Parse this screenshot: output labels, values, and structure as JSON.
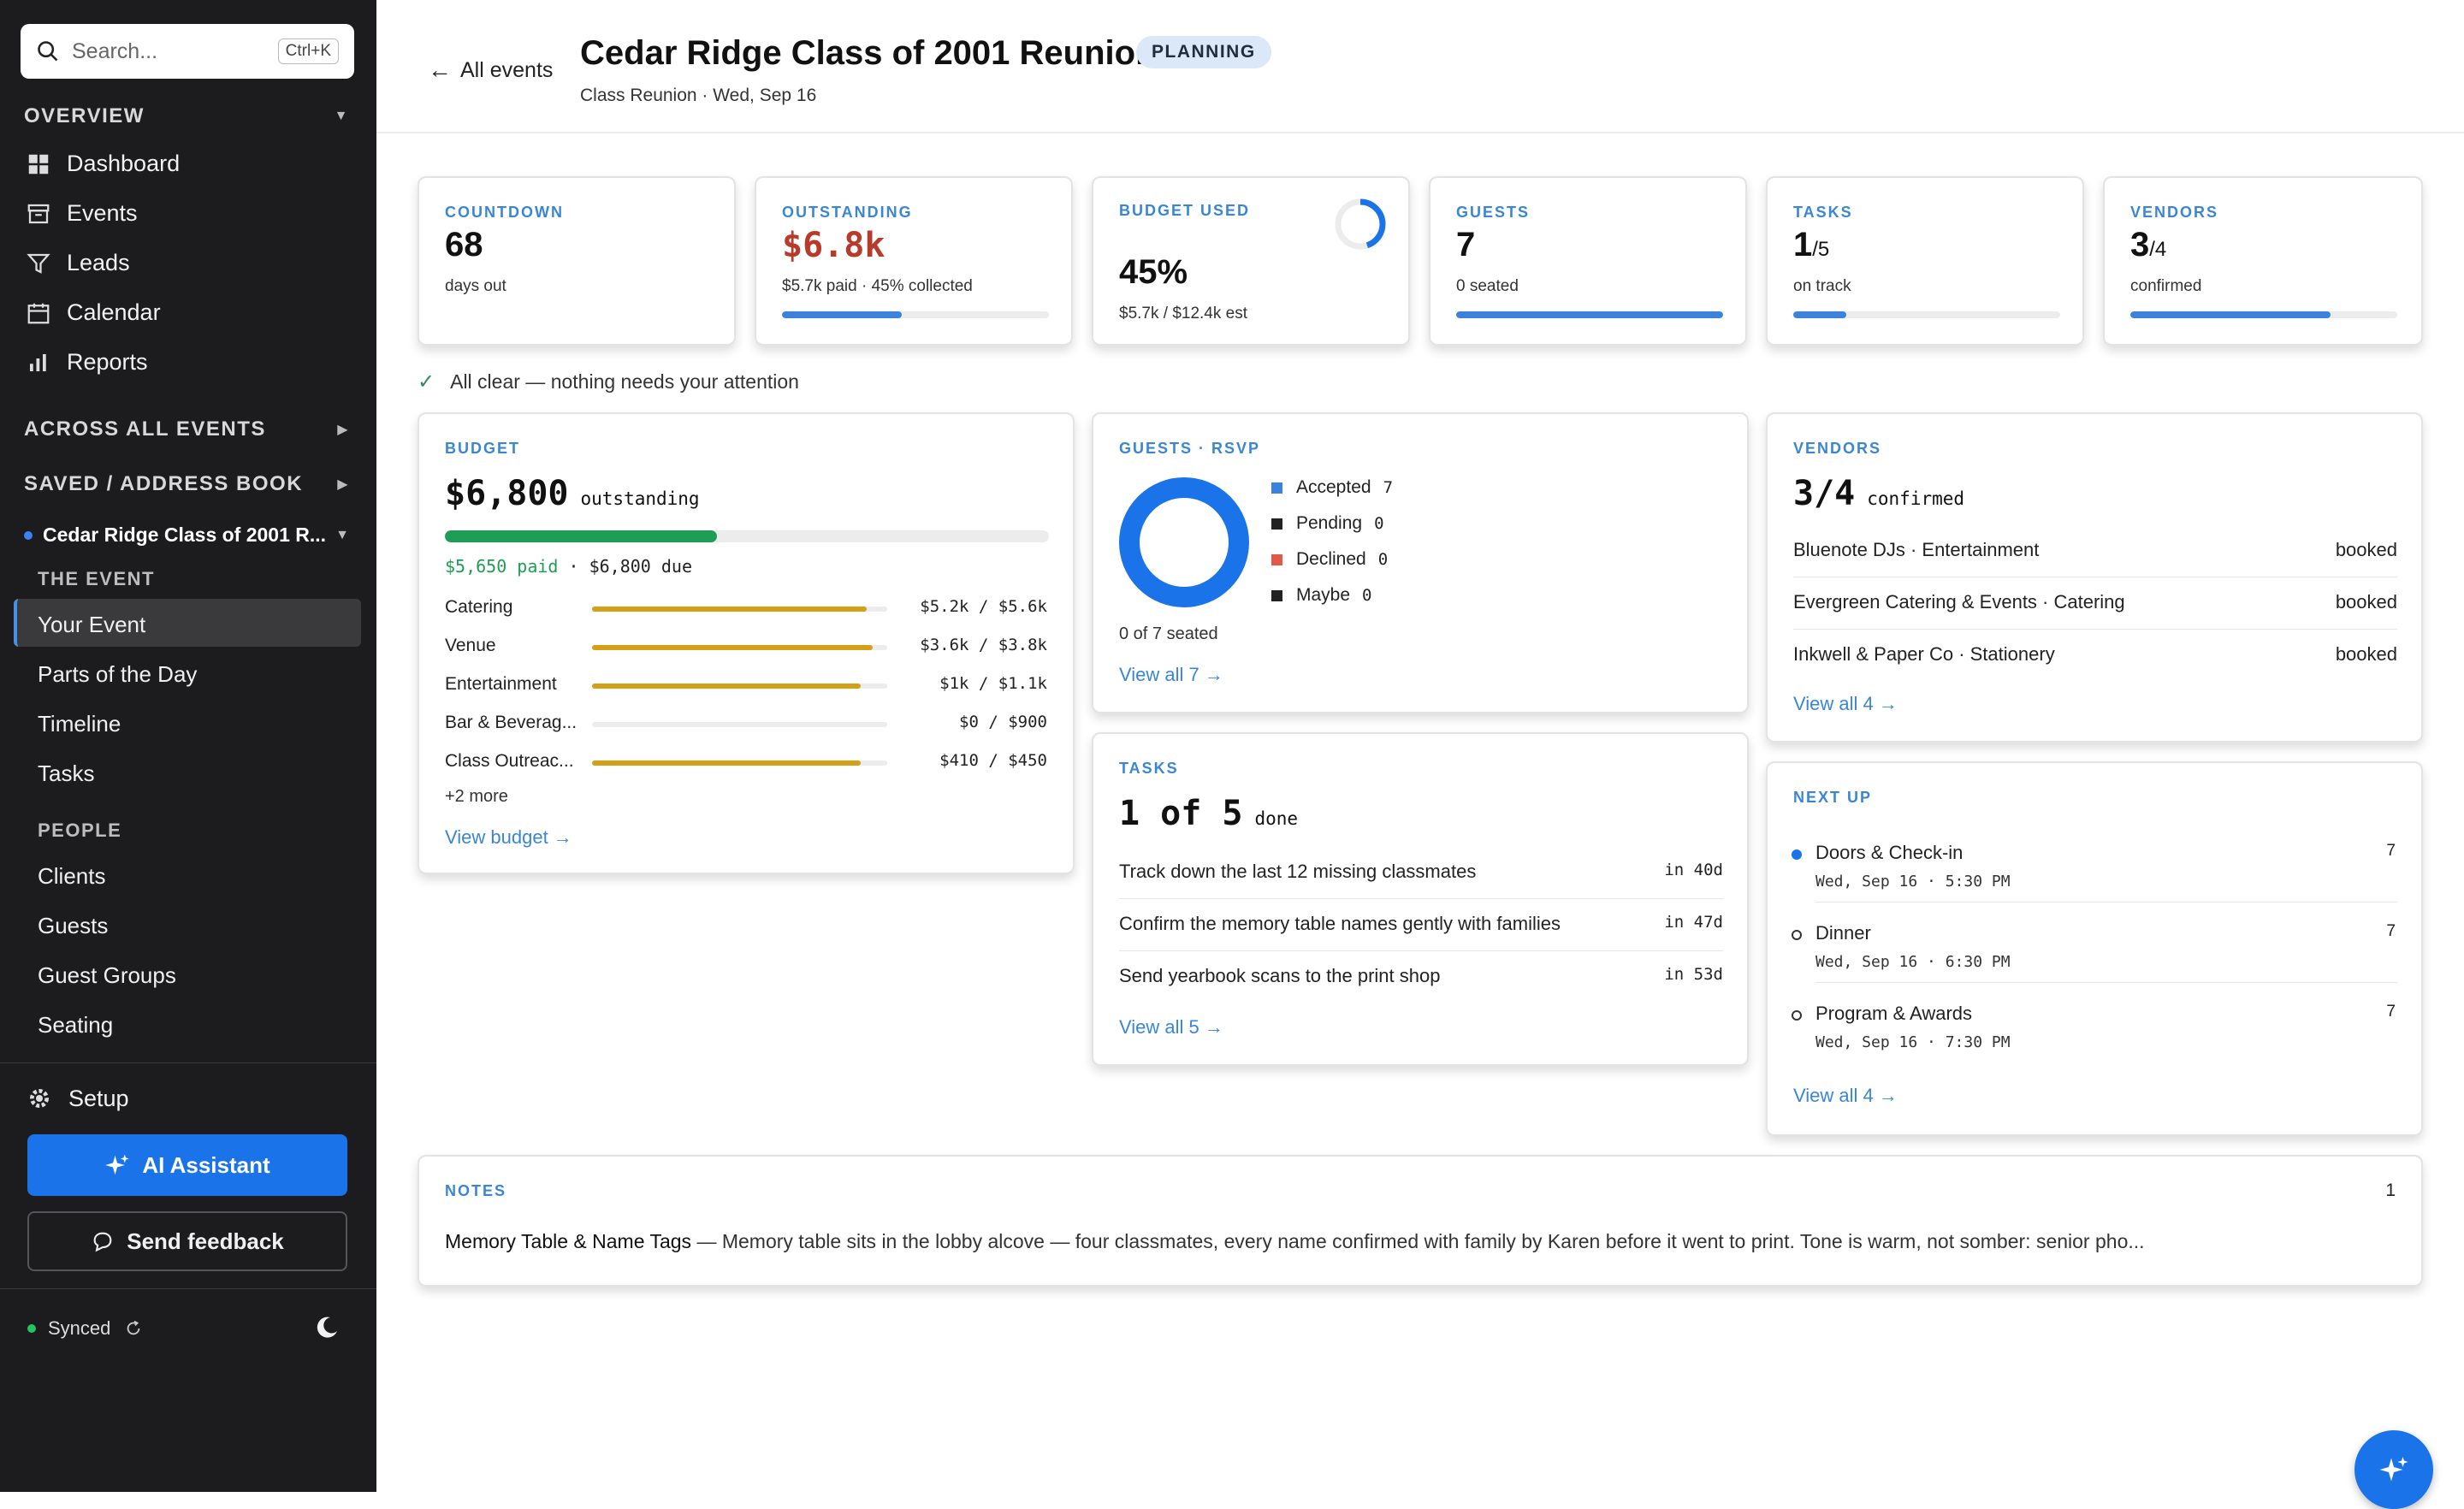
{
  "sidebar": {
    "search_placeholder": "Search...",
    "search_shortcut": "Ctrl+K",
    "overview_label": "OVERVIEW",
    "overview_items": [
      "Dashboard",
      "Events",
      "Leads",
      "Calendar",
      "Reports"
    ],
    "across_label": "ACROSS ALL EVENTS",
    "saved_label": "SAVED / ADDRESS BOOK",
    "current_event": "Cedar Ridge Class of 2001 R...",
    "the_event_label": "THE EVENT",
    "event_items": [
      "Your Event",
      "Parts of the Day",
      "Timeline",
      "Tasks"
    ],
    "people_label": "PEOPLE",
    "people_items": [
      "Clients",
      "Guests",
      "Guest Groups",
      "Seating"
    ],
    "setup_label": "Setup",
    "ai_label": "AI Assistant",
    "feedback_label": "Send feedback",
    "sync_label": "Synced"
  },
  "header": {
    "back_label": "All events",
    "title": "Cedar Ridge Class of 2001 Reunion",
    "badge": "PLANNING",
    "subtitle": "Class Reunion · Wed, Sep 16"
  },
  "kpis": {
    "countdown": {
      "label": "COUNTDOWN",
      "value": "68",
      "sub": "days out"
    },
    "outstanding": {
      "label": "OUTSTANDING",
      "value": "$6.8k",
      "sub": "$5.7k paid · 45% collected",
      "progress": 0.45
    },
    "budget_used": {
      "label": "BUDGET USED",
      "value": "45%",
      "sub": "$5.7k / $12.4k est",
      "progress": 0.45
    },
    "guests": {
      "label": "GUESTS",
      "value": "7",
      "sub": "0 seated",
      "progress": 1.0
    },
    "tasks": {
      "label": "TASKS",
      "value_main": "1",
      "value_rest": "/5",
      "sub": "on track",
      "progress": 0.2
    },
    "vendors": {
      "label": "VENDORS",
      "value_main": "3",
      "value_rest": "/4",
      "sub": "confirmed",
      "progress": 0.75
    }
  },
  "status_message": "All clear — nothing needs your attention",
  "budget": {
    "label": "BUDGET",
    "amount": "$6,800",
    "amount_suffix": "outstanding",
    "paid_fraction": 0.45,
    "paid_text": "$5,650 paid",
    "due_text": " · $6,800 due",
    "lines": [
      {
        "name": "Catering",
        "value": "$5.2k / $5.6k",
        "fraction": 0.93
      },
      {
        "name": "Venue",
        "value": "$3.6k / $3.8k",
        "fraction": 0.95
      },
      {
        "name": "Entertainment",
        "value": "$1k / $1.1k",
        "fraction": 0.91
      },
      {
        "name": "Bar & Beverag...",
        "value": "$0 / $900",
        "fraction": 0.0
      },
      {
        "name": "Class Outreac...",
        "value": "$410 / $450",
        "fraction": 0.91
      }
    ],
    "more": "+2 more",
    "link": "View budget →"
  },
  "rsvp": {
    "label": "GUESTS · RSVP",
    "legend": [
      {
        "name": "Accepted",
        "count": "7",
        "color": "#3b82dc"
      },
      {
        "name": "Pending",
        "count": "0",
        "color": "#222222"
      },
      {
        "name": "Declined",
        "count": "0",
        "color": "#e05a47"
      },
      {
        "name": "Maybe",
        "count": "0",
        "color": "#222222"
      }
    ],
    "seated": "0 of 7 seated",
    "link": "View all 7 →"
  },
  "vendors": {
    "label": "VENDORS",
    "count_main": "3/4",
    "count_suffix": "confirmed",
    "items": [
      {
        "name": "Bluenote DJs · Entertainment",
        "status": "booked"
      },
      {
        "name": "Evergreen Catering & Events · Catering",
        "status": "booked"
      },
      {
        "name": "Inkwell & Paper Co · Stationery",
        "status": "booked"
      }
    ],
    "link": "View all 4 →"
  },
  "tasks": {
    "label": "TASKS",
    "count_main": "1 of 5",
    "count_suffix": "done",
    "items": [
      {
        "name": "Track down the last 12 missing classmates",
        "due": "in 40d"
      },
      {
        "name": "Confirm the memory table names gently with families",
        "due": "in 47d"
      },
      {
        "name": "Send yearbook scans to the print shop",
        "due": "in 53d"
      }
    ],
    "link": "View all 5 →"
  },
  "next_up": {
    "label": "NEXT UP",
    "items": [
      {
        "name": "Doors & Check-in",
        "time": "Wed, Sep 16 · 5:30 PM",
        "count": "7"
      },
      {
        "name": "Dinner",
        "time": "Wed, Sep 16 · 6:30 PM",
        "count": "7"
      },
      {
        "name": "Program & Awards",
        "time": "Wed, Sep 16 · 7:30 PM",
        "count": "7"
      }
    ],
    "link": "View all 4 →"
  },
  "notes": {
    "label": "NOTES",
    "count": "1",
    "title": "Memory Table & Name Tags",
    "body": " — Memory table sits in the lobby alcove — four classmates, every name confirmed with family by Karen before it went to print. Tone is warm, not somber: senior pho..."
  },
  "colors": {
    "accent": "#1a73e8",
    "danger": "#b83a2b",
    "budget_bar": "#d4a017",
    "paid_bar": "#1f9d55"
  }
}
